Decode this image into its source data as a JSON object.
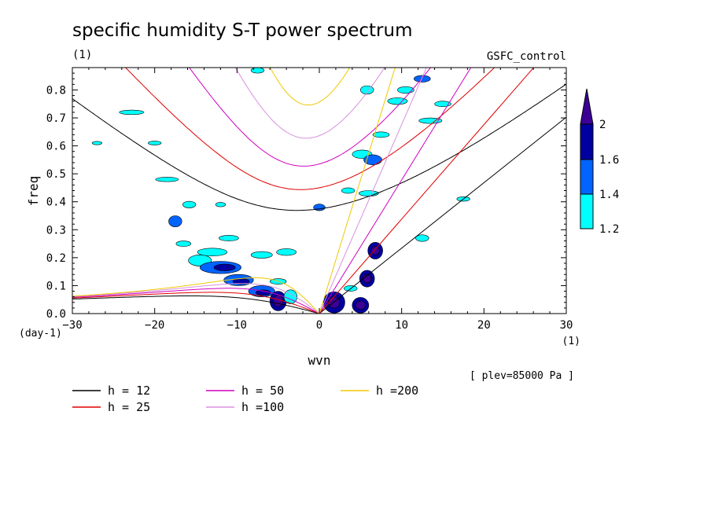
{
  "chart_data": {
    "type": "contour",
    "title": "specific humidity S-T power spectrum",
    "subtitle_left": "(1)",
    "subtitle_right": "GSFC_control",
    "xlabel": "wvn",
    "ylabel": "freq",
    "x_unit": "(1)",
    "y_unit": "(day-1)",
    "xlim": [
      -30,
      30
    ],
    "ylim": [
      0,
      0.88
    ],
    "x_ticks": [
      -30,
      -20,
      -10,
      0,
      10,
      20,
      30
    ],
    "x_tick_labels": [
      "−30",
      "−20",
      "−10",
      "0",
      "10",
      "20",
      "30"
    ],
    "y_ticks": [
      0,
      0.1,
      0.2,
      0.3,
      0.4,
      0.5,
      0.6,
      0.7,
      0.8
    ],
    "y_tick_labels": [
      "0.0",
      "0.1",
      "0.2",
      "0.3",
      "0.4",
      "0.5",
      "0.6",
      "0.7",
      "0.8"
    ],
    "annotation": "[ plev=85000 Pa ]",
    "colorbar": {
      "levels": [
        1.2,
        1.4,
        1.6,
        2
      ],
      "level_labels": [
        "1.2",
        "1.4",
        "1.6",
        "2"
      ],
      "colors": [
        "#00ffff",
        "#0064ff",
        "#0000a0",
        "#3c0096"
      ]
    },
    "dispersion_curves": [
      {
        "name": "h = 12",
        "h": 12,
        "color": "#000000"
      },
      {
        "name": "h = 25",
        "h": 25,
        "color": "#e00000"
      },
      {
        "name": "h = 50",
        "h": 50,
        "color": "#d000c0"
      },
      {
        "name": "h =100",
        "h": 100,
        "color": "#d890e0"
      },
      {
        "name": "h =200",
        "h": 200,
        "color": "#f0c800"
      }
    ],
    "contour_blobs": [
      {
        "x": -22.8,
        "y": 0.72,
        "rx": 1.5,
        "ry": 0.008,
        "level": 1.2
      },
      {
        "x": -20.0,
        "y": 0.61,
        "rx": 0.8,
        "ry": 0.007,
        "level": 1.2
      },
      {
        "x": -18.5,
        "y": 0.48,
        "rx": 1.4,
        "ry": 0.008,
        "level": 1.2
      },
      {
        "x": -17.5,
        "y": 0.33,
        "rx": 0.8,
        "ry": 0.02,
        "level": 1.4
      },
      {
        "x": -15.8,
        "y": 0.39,
        "rx": 0.8,
        "ry": 0.012,
        "level": 1.2
      },
      {
        "x": -16.5,
        "y": 0.25,
        "rx": 0.9,
        "ry": 0.01,
        "level": 1.2
      },
      {
        "x": -14.5,
        "y": 0.19,
        "rx": 1.4,
        "ry": 0.02,
        "level": 1.2
      },
      {
        "x": -13.0,
        "y": 0.22,
        "rx": 1.8,
        "ry": 0.014,
        "level": 1.2
      },
      {
        "x": -12.0,
        "y": 0.165,
        "rx": 2.5,
        "ry": 0.022,
        "level": 1.4
      },
      {
        "x": -11.5,
        "y": 0.165,
        "rx": 1.3,
        "ry": 0.012,
        "level": 1.6
      },
      {
        "x": -11.0,
        "y": 0.27,
        "rx": 1.2,
        "ry": 0.01,
        "level": 1.2
      },
      {
        "x": -9.8,
        "y": 0.12,
        "rx": 1.8,
        "ry": 0.02,
        "level": 1.4
      },
      {
        "x": -9.5,
        "y": 0.115,
        "rx": 1.0,
        "ry": 0.01,
        "level": 1.6
      },
      {
        "x": -7.0,
        "y": 0.08,
        "rx": 1.6,
        "ry": 0.02,
        "level": 1.4
      },
      {
        "x": -6.8,
        "y": 0.075,
        "rx": 0.9,
        "ry": 0.01,
        "level": 1.6
      },
      {
        "x": -5.0,
        "y": 0.045,
        "rx": 1.0,
        "ry": 0.035,
        "level": 1.6
      },
      {
        "x": -5.0,
        "y": 0.045,
        "rx": 0.6,
        "ry": 0.02,
        "level": 2
      },
      {
        "x": -5.0,
        "y": 0.115,
        "rx": 1.0,
        "ry": 0.01,
        "level": 1.2
      },
      {
        "x": -3.5,
        "y": 0.06,
        "rx": 0.8,
        "ry": 0.025,
        "level": 1.2
      },
      {
        "x": -4.0,
        "y": 0.22,
        "rx": 1.2,
        "ry": 0.012,
        "level": 1.2
      },
      {
        "x": 0.0,
        "y": 0.38,
        "rx": 0.7,
        "ry": 0.012,
        "level": 1.4
      },
      {
        "x": -7.0,
        "y": 0.21,
        "rx": 1.3,
        "ry": 0.012,
        "level": 1.2
      },
      {
        "x": 1.8,
        "y": 0.04,
        "rx": 1.3,
        "ry": 0.038,
        "level": 1.6
      },
      {
        "x": 1.8,
        "y": 0.04,
        "rx": 0.7,
        "ry": 0.02,
        "level": 2
      },
      {
        "x": 5.0,
        "y": 0.03,
        "rx": 1.0,
        "ry": 0.028,
        "level": 1.6
      },
      {
        "x": 5.0,
        "y": 0.03,
        "rx": 0.6,
        "ry": 0.015,
        "level": 2
      },
      {
        "x": 5.8,
        "y": 0.125,
        "rx": 0.9,
        "ry": 0.03,
        "level": 1.6
      },
      {
        "x": 5.8,
        "y": 0.125,
        "rx": 0.5,
        "ry": 0.015,
        "level": 2
      },
      {
        "x": 6.8,
        "y": 0.225,
        "rx": 0.9,
        "ry": 0.03,
        "level": 1.6
      },
      {
        "x": 6.8,
        "y": 0.225,
        "rx": 0.5,
        "ry": 0.015,
        "level": 2
      },
      {
        "x": 5.2,
        "y": 0.57,
        "rx": 1.2,
        "ry": 0.015,
        "level": 1.2
      },
      {
        "x": 6.5,
        "y": 0.55,
        "rx": 1.1,
        "ry": 0.018,
        "level": 1.4
      },
      {
        "x": 7.5,
        "y": 0.64,
        "rx": 1.0,
        "ry": 0.01,
        "level": 1.2
      },
      {
        "x": 9.5,
        "y": 0.76,
        "rx": 1.2,
        "ry": 0.012,
        "level": 1.2
      },
      {
        "x": 10.5,
        "y": 0.8,
        "rx": 1.0,
        "ry": 0.012,
        "level": 1.2
      },
      {
        "x": 12.5,
        "y": 0.84,
        "rx": 1.0,
        "ry": 0.012,
        "level": 1.4
      },
      {
        "x": 13.5,
        "y": 0.69,
        "rx": 1.4,
        "ry": 0.01,
        "level": 1.2
      },
      {
        "x": 15.0,
        "y": 0.75,
        "rx": 1.0,
        "ry": 0.01,
        "level": 1.2
      },
      {
        "x": 6.0,
        "y": 0.43,
        "rx": 1.2,
        "ry": 0.01,
        "level": 1.2
      },
      {
        "x": 3.5,
        "y": 0.44,
        "rx": 0.8,
        "ry": 0.01,
        "level": 1.2
      },
      {
        "x": 5.8,
        "y": 0.8,
        "rx": 0.8,
        "ry": 0.015,
        "level": 1.2
      },
      {
        "x": 12.5,
        "y": 0.27,
        "rx": 0.8,
        "ry": 0.012,
        "level": 1.2
      },
      {
        "x": 17.5,
        "y": 0.41,
        "rx": 0.8,
        "ry": 0.008,
        "level": 1.2
      },
      {
        "x": -7.5,
        "y": 0.87,
        "rx": 0.8,
        "ry": 0.01,
        "level": 1.2
      },
      {
        "x": -27.0,
        "y": 0.61,
        "rx": 0.6,
        "ry": 0.006,
        "level": 1.2
      },
      {
        "x": -12.0,
        "y": 0.39,
        "rx": 0.6,
        "ry": 0.008,
        "level": 1.2
      },
      {
        "x": 3.8,
        "y": 0.09,
        "rx": 0.8,
        "ry": 0.01,
        "level": 1.2
      }
    ]
  }
}
